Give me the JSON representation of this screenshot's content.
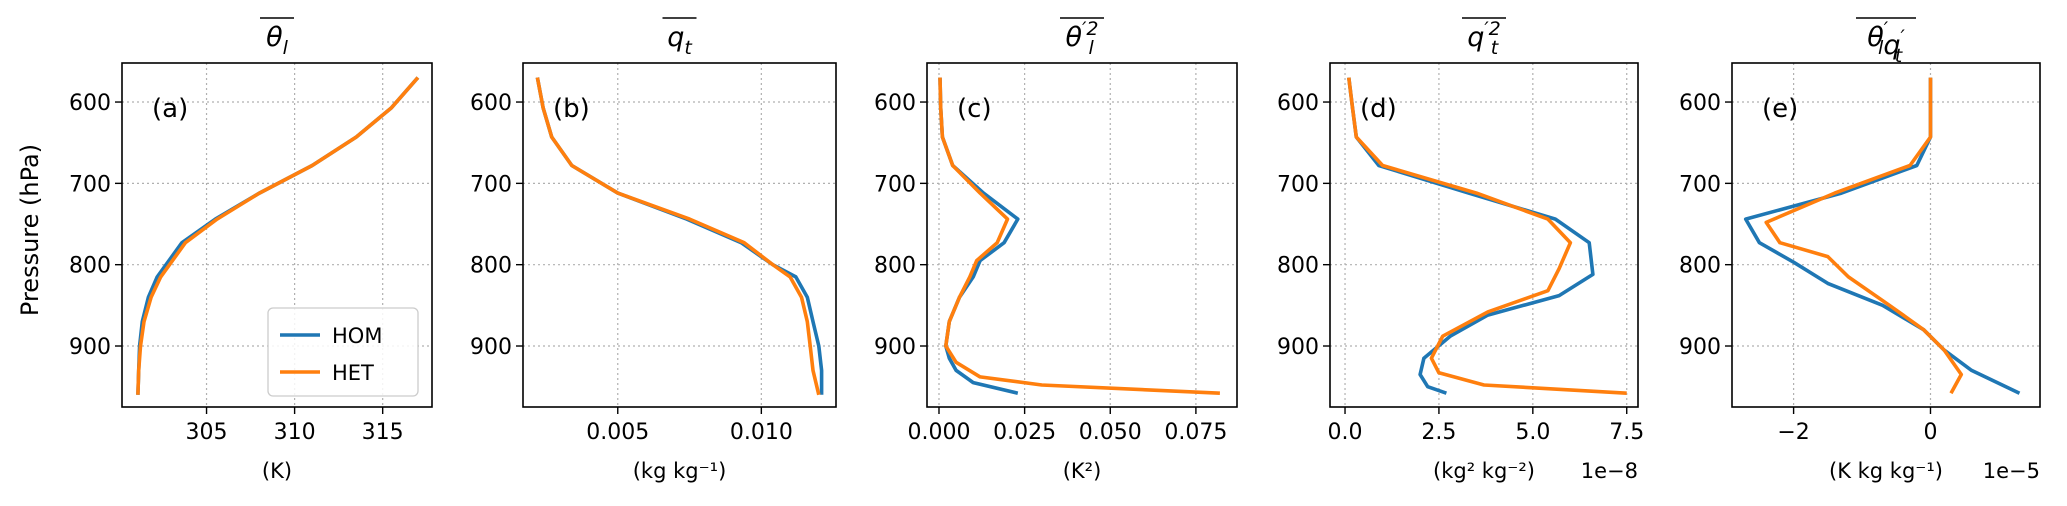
{
  "figure": {
    "ylabel": "Pressure (hPa)"
  },
  "legend": {
    "entries": [
      {
        "label": "HOM",
        "color": "#1f77b4"
      },
      {
        "label": "HET",
        "color": "#ff7f0e"
      }
    ],
    "placement": "lower right of panel (a)"
  },
  "chart_data": [
    {
      "type": "line",
      "panel_label": "(a)",
      "title": "θl (overline)",
      "title_main": "θ",
      "title_sub": "l",
      "title_sup": "",
      "xlabel": "(K)",
      "xlabel_sup": "",
      "xlabel_suffix": "",
      "offset_text": "",
      "xlim": [
        300.2,
        317.8
      ],
      "xticks": [
        305,
        310,
        315
      ],
      "xtick_labels": [
        "305",
        "310",
        "315"
      ],
      "ylim": [
        975,
        552
      ],
      "yticks": [
        600,
        700,
        800,
        900
      ],
      "ytick_labels": [
        "600",
        "700",
        "800",
        "900"
      ],
      "grid": true,
      "series": [
        {
          "name": "HOM",
          "points": [
            [
              301.1,
              960
            ],
            [
              301.15,
              930
            ],
            [
              301.2,
              900
            ],
            [
              301.35,
              870
            ],
            [
              301.7,
              840
            ],
            [
              302.2,
              815
            ],
            [
              303.6,
              773
            ],
            [
              305.5,
              744
            ],
            [
              308.0,
              712
            ],
            [
              311.0,
              678
            ],
            [
              313.5,
              643
            ],
            [
              315.5,
              607
            ],
            [
              317.0,
              570
            ]
          ]
        },
        {
          "name": "HET",
          "points": [
            [
              301.1,
              960
            ],
            [
              301.15,
              930
            ],
            [
              301.25,
              900
            ],
            [
              301.45,
              870
            ],
            [
              301.85,
              840
            ],
            [
              302.4,
              815
            ],
            [
              303.8,
              773
            ],
            [
              305.6,
              744
            ],
            [
              308.0,
              712
            ],
            [
              311.0,
              678
            ],
            [
              313.5,
              643
            ],
            [
              315.5,
              607
            ],
            [
              317.0,
              570
            ]
          ]
        }
      ]
    },
    {
      "type": "line",
      "panel_label": "(b)",
      "title": "qt (overline)",
      "title_main": "q",
      "title_sub": "t",
      "title_sup": "",
      "xlabel": "(kg kg⁻¹)",
      "xlabel_sup": "",
      "xlabel_suffix": "",
      "offset_text": "",
      "xlim": [
        0.0017,
        0.0126
      ],
      "xticks": [
        0.005,
        0.01
      ],
      "xtick_labels": [
        "0.005",
        "0.010"
      ],
      "ylim": [
        975,
        552
      ],
      "yticks": [
        600,
        700,
        800,
        900
      ],
      "ytick_labels": [
        "600",
        "700",
        "800",
        "900"
      ],
      "grid": true,
      "series": [
        {
          "name": "HOM",
          "points": [
            [
              0.0022,
              570
            ],
            [
              0.0024,
              607
            ],
            [
              0.0027,
              643
            ],
            [
              0.0034,
              678
            ],
            [
              0.005,
              712
            ],
            [
              0.0074,
              744
            ],
            [
              0.0093,
              773
            ],
            [
              0.0104,
              800
            ],
            [
              0.0112,
              815
            ],
            [
              0.0116,
              840
            ],
            [
              0.0118,
              870
            ],
            [
              0.012,
              900
            ],
            [
              0.0121,
              930
            ],
            [
              0.0121,
              960
            ]
          ]
        },
        {
          "name": "HET",
          "points": [
            [
              0.0022,
              570
            ],
            [
              0.0024,
              607
            ],
            [
              0.0027,
              643
            ],
            [
              0.0034,
              678
            ],
            [
              0.005,
              712
            ],
            [
              0.0075,
              744
            ],
            [
              0.0094,
              773
            ],
            [
              0.0104,
              800
            ],
            [
              0.011,
              815
            ],
            [
              0.0114,
              840
            ],
            [
              0.0116,
              870
            ],
            [
              0.0117,
              900
            ],
            [
              0.0118,
              930
            ],
            [
              0.012,
              960
            ]
          ]
        }
      ]
    },
    {
      "type": "line",
      "panel_label": "(c)",
      "title": "θl'2 (overline)",
      "title_main": "θ",
      "title_sub": "l",
      "title_sup": "′2",
      "xlabel": "(K²)",
      "xlabel_sup": "",
      "xlabel_suffix": "",
      "offset_text": "",
      "xlim": [
        -0.0035,
        0.087
      ],
      "xticks": [
        0.0,
        0.025,
        0.05,
        0.075
      ],
      "xtick_labels": [
        "0.000",
        "0.025",
        "0.050",
        "0.075"
      ],
      "ylim": [
        975,
        552
      ],
      "yticks": [
        600,
        700,
        800,
        900
      ],
      "ytick_labels": [
        "600",
        "700",
        "800",
        "900"
      ],
      "grid": true,
      "series": [
        {
          "name": "HOM",
          "points": [
            [
              0.0003,
              570
            ],
            [
              0.0005,
              607
            ],
            [
              0.001,
              643
            ],
            [
              0.004,
              678
            ],
            [
              0.013,
              712
            ],
            [
              0.023,
              744
            ],
            [
              0.019,
              773
            ],
            [
              0.012,
              795
            ],
            [
              0.01,
              815
            ],
            [
              0.006,
              840
            ],
            [
              0.003,
              870
            ],
            [
              0.002,
              900
            ],
            [
              0.003,
              915
            ],
            [
              0.005,
              930
            ],
            [
              0.01,
              945
            ],
            [
              0.023,
              958
            ]
          ]
        },
        {
          "name": "HET",
          "points": [
            [
              0.0003,
              570
            ],
            [
              0.0005,
              607
            ],
            [
              0.001,
              643
            ],
            [
              0.004,
              678
            ],
            [
              0.012,
              712
            ],
            [
              0.02,
              744
            ],
            [
              0.017,
              773
            ],
            [
              0.011,
              795
            ],
            [
              0.009,
              815
            ],
            [
              0.006,
              840
            ],
            [
              0.003,
              870
            ],
            [
              0.002,
              900
            ],
            [
              0.005,
              920
            ],
            [
              0.012,
              938
            ],
            [
              0.03,
              948
            ],
            [
              0.082,
              958
            ]
          ]
        }
      ]
    },
    {
      "type": "line",
      "panel_label": "(d)",
      "title": "qt'2 (overline)",
      "title_main": "q",
      "title_sub": "t",
      "title_sup": "′2",
      "xlabel": "(kg² kg⁻²)",
      "xlabel_sup": "",
      "xlabel_suffix": "",
      "offset_text": "1e−8",
      "xlim": [
        -0.4,
        7.8
      ],
      "xticks": [
        0.0,
        2.5,
        5.0,
        7.5
      ],
      "xtick_labels": [
        "0.0",
        "2.5",
        "5.0",
        "7.5"
      ],
      "ylim": [
        975,
        552
      ],
      "yticks": [
        600,
        700,
        800,
        900
      ],
      "ytick_labels": [
        "600",
        "700",
        "800",
        "900"
      ],
      "grid": true,
      "series": [
        {
          "name": "HOM",
          "points": [
            [
              0.1,
              570
            ],
            [
              0.2,
              607
            ],
            [
              0.3,
              643
            ],
            [
              0.9,
              678
            ],
            [
              3.3,
              712
            ],
            [
              5.6,
              744
            ],
            [
              6.5,
              773
            ],
            [
              6.6,
              812
            ],
            [
              5.7,
              838
            ],
            [
              3.8,
              862
            ],
            [
              2.8,
              888
            ],
            [
              2.1,
              915
            ],
            [
              2.0,
              935
            ],
            [
              2.2,
              950
            ],
            [
              2.7,
              958
            ]
          ]
        },
        {
          "name": "HET",
          "points": [
            [
              0.1,
              570
            ],
            [
              0.2,
              607
            ],
            [
              0.3,
              643
            ],
            [
              1.0,
              678
            ],
            [
              3.5,
              712
            ],
            [
              5.4,
              744
            ],
            [
              6.0,
              773
            ],
            [
              5.7,
              805
            ],
            [
              5.4,
              832
            ],
            [
              3.8,
              858
            ],
            [
              2.6,
              888
            ],
            [
              2.3,
              915
            ],
            [
              2.5,
              933
            ],
            [
              3.7,
              948
            ],
            [
              7.5,
              958
            ]
          ]
        }
      ]
    },
    {
      "type": "line",
      "panel_label": "(e)",
      "title": "θl'qt' (overline)",
      "title_main": "θ",
      "title_sub": "l",
      "title_sup": "′",
      "title2_main": "q",
      "title2_sub": "t",
      "title2_sup": "′",
      "xlabel": "(K kg kg⁻¹)",
      "xlabel_sup": "",
      "xlabel_suffix": "",
      "offset_text": "1e−5",
      "xlim": [
        -2.9,
        1.6
      ],
      "xticks": [
        -2,
        0
      ],
      "xtick_labels": [
        "−2",
        "0"
      ],
      "ylim": [
        975,
        552
      ],
      "yticks": [
        600,
        700,
        800,
        900
      ],
      "ytick_labels": [
        "600",
        "700",
        "800",
        "900"
      ],
      "grid": true,
      "series": [
        {
          "name": "HOM",
          "points": [
            [
              0.0,
              570
            ],
            [
              0.0,
              607
            ],
            [
              0.0,
              643
            ],
            [
              -0.2,
              678
            ],
            [
              -1.3,
              712
            ],
            [
              -2.7,
              744
            ],
            [
              -2.5,
              773
            ],
            [
              -2.0,
              797
            ],
            [
              -1.5,
              823
            ],
            [
              -0.7,
              850
            ],
            [
              -0.1,
              880
            ],
            [
              0.2,
              905
            ],
            [
              0.6,
              930
            ],
            [
              1.3,
              958
            ]
          ]
        },
        {
          "name": "HET",
          "points": [
            [
              0.0,
              570
            ],
            [
              0.0,
              607
            ],
            [
              0.0,
              643
            ],
            [
              -0.3,
              678
            ],
            [
              -1.4,
              712
            ],
            [
              -2.4,
              748
            ],
            [
              -2.2,
              773
            ],
            [
              -1.5,
              790
            ],
            [
              -1.2,
              815
            ],
            [
              -0.6,
              850
            ],
            [
              -0.1,
              880
            ],
            [
              0.2,
              905
            ],
            [
              0.45,
              935
            ],
            [
              0.3,
              958
            ]
          ]
        }
      ]
    }
  ]
}
